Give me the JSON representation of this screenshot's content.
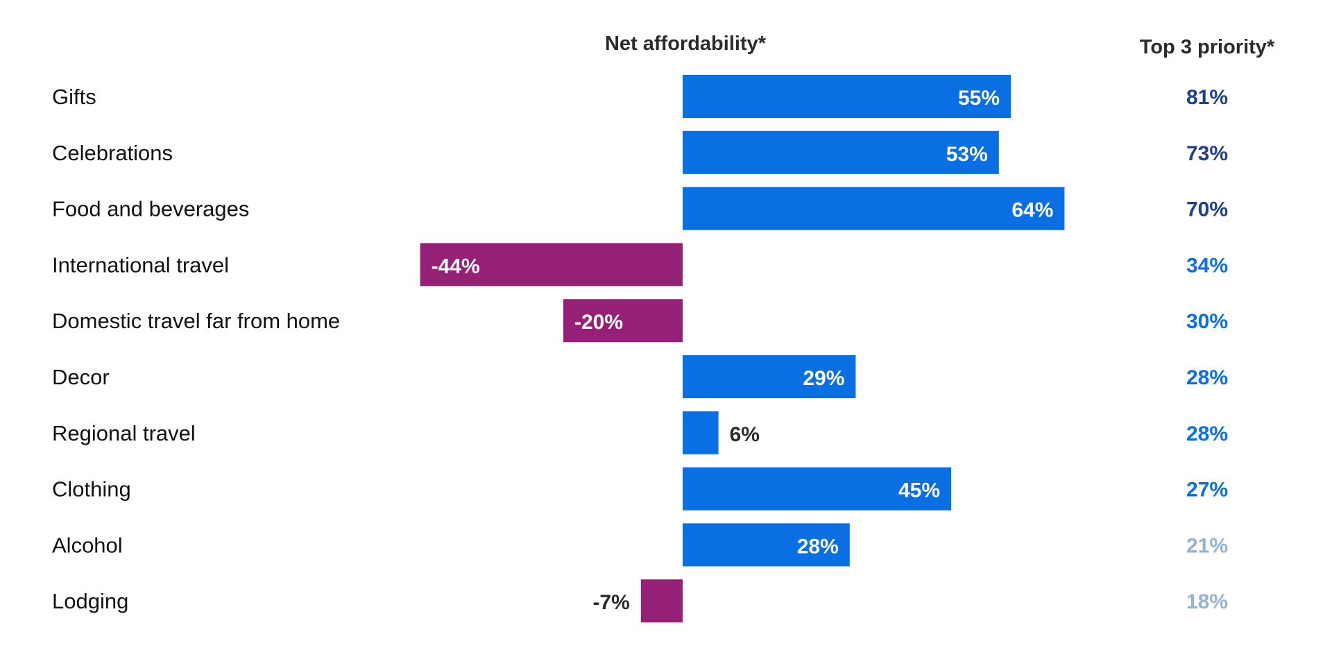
{
  "headers": {
    "net_affordability": "Net affordability*",
    "top3_priority": "Top 3 priority*"
  },
  "colors": {
    "positive_bar": "#0A6FE3",
    "negative_bar": "#952177",
    "label_on_bar": "#ffffff",
    "label_outside": "#2b2b2b",
    "priority_dark": "#1F3F8F",
    "priority_mid": "#0A6FE3",
    "priority_light": "#93B4D3"
  },
  "chart_data": {
    "type": "bar",
    "orientation": "horizontal",
    "categories": [
      "Gifts",
      "Celebrations",
      "Food and beverages",
      "International travel",
      "Domestic travel far from home",
      "Decor",
      "Regional travel",
      "Clothing",
      "Alcohol",
      "Lodging"
    ],
    "series": [
      {
        "name": "Net affordability*",
        "values": [
          55,
          53,
          64,
          -44,
          -20,
          29,
          6,
          45,
          28,
          -7
        ],
        "labels": [
          "55%",
          "53%",
          "64%",
          "-44%",
          "-20%",
          "29%",
          "6%",
          "45%",
          "28%",
          "-7%"
        ]
      },
      {
        "name": "Top 3 priority*",
        "values": [
          81,
          73,
          70,
          34,
          30,
          28,
          28,
          27,
          21,
          18
        ],
        "labels": [
          "81%",
          "73%",
          "70%",
          "34%",
          "30%",
          "28%",
          "28%",
          "27%",
          "21%",
          "18%"
        ],
        "tiers": [
          "dark",
          "dark",
          "dark",
          "mid",
          "mid",
          "mid",
          "mid",
          "mid",
          "light",
          "light"
        ]
      }
    ]
  }
}
